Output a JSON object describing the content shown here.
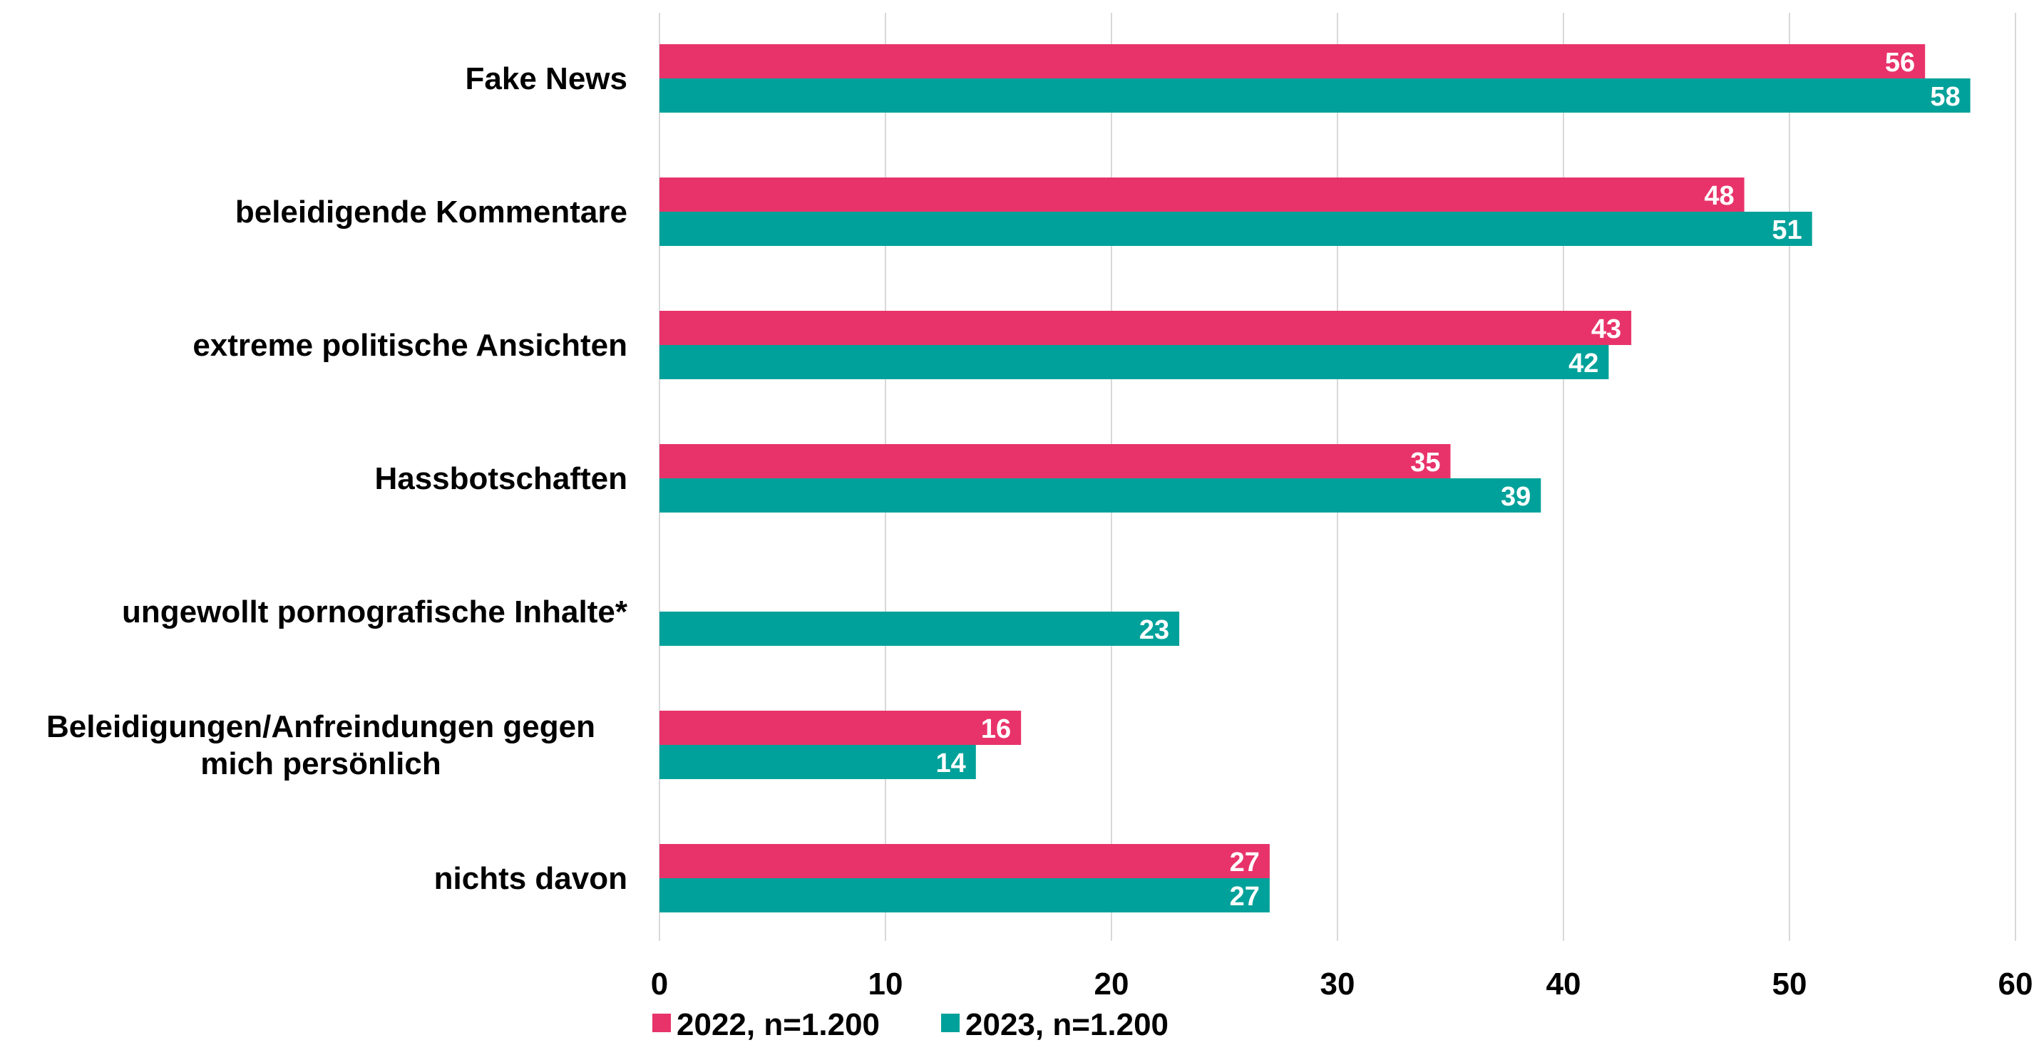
{
  "chart_data": {
    "type": "bar",
    "orientation": "horizontal",
    "categories": [
      [
        "Fake News"
      ],
      [
        "beleidigende Kommentare"
      ],
      [
        "extreme politische Ansichten"
      ],
      [
        "Hassbotschaften"
      ],
      [
        "ungewollt pornografische Inhalte*"
      ],
      [
        "Beleidigungen/Anfreindungen gegen",
        "mich persönlich"
      ],
      [
        "nichts davon"
      ]
    ],
    "series": [
      {
        "name": "2022, n=1.200",
        "color": "#e8336a",
        "values": [
          56,
          48,
          43,
          35,
          null,
          16,
          27
        ]
      },
      {
        "name": "2023, n=1.200",
        "color": "#00a19a",
        "values": [
          58,
          51,
          42,
          39,
          23,
          14,
          27
        ]
      }
    ],
    "xlim": [
      0,
      60
    ],
    "xticks": [
      0,
      10,
      20,
      30,
      40,
      50,
      60
    ],
    "grid": true,
    "legend": "bottom",
    "title": "",
    "xlabel": "",
    "ylabel": ""
  }
}
